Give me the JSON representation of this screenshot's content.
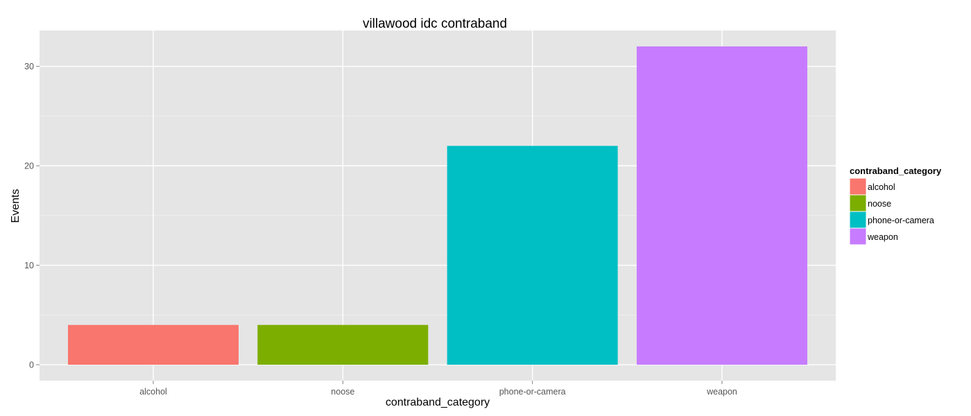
{
  "chart_data": {
    "type": "bar",
    "title": "villawood idc contraband",
    "xlabel": "contraband_category",
    "ylabel": "Events",
    "categories": [
      "alcohol",
      "noose",
      "phone-or-camera",
      "weapon"
    ],
    "values": [
      4,
      4,
      22,
      32
    ],
    "colors": [
      "#F8766D",
      "#7CAE00",
      "#00BFC4",
      "#C77CFF"
    ],
    "yticks": [
      0,
      10,
      20,
      30
    ],
    "ylim": [
      -1.6,
      33.6
    ],
    "grid": true,
    "legend": {
      "title": "contraband_category",
      "position": "right",
      "entries": [
        "alcohol",
        "noose",
        "phone-or-camera",
        "weapon"
      ]
    }
  }
}
